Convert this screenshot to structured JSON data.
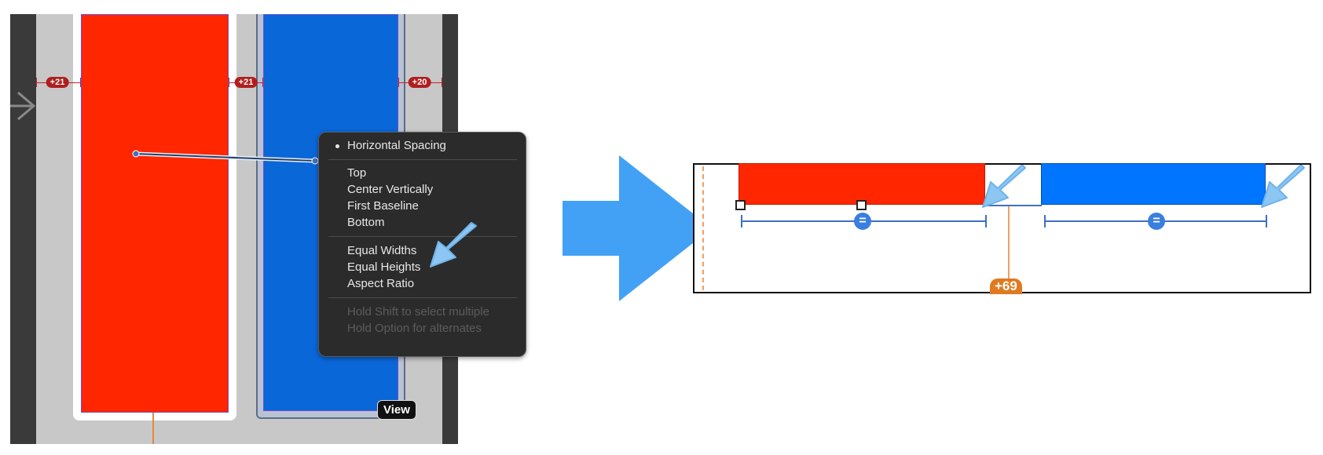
{
  "canvas": {
    "constraint_badges": [
      "+21",
      "+21",
      "+20"
    ]
  },
  "context_menu": {
    "selected_item": "Horizontal Spacing",
    "group_alignment": [
      "Top",
      "Center Vertically",
      "First Baseline",
      "Bottom"
    ],
    "group_sizing": [
      "Equal Widths",
      "Equal Heights",
      "Aspect Ratio"
    ],
    "hints": [
      "Hold Shift to select multiple",
      "Hold Option for alternates"
    ]
  },
  "view_label": "View",
  "preview": {
    "equal_symbol": "=",
    "offset_badge": "+69"
  },
  "colors": {
    "red_view": "#ff2600",
    "blue_view_canvas": "#0a67d8",
    "blue_view_preview": "#0075ff",
    "arrow": "#42a1f5",
    "constraint_red": "#b01e1e",
    "constraint_blue": "#3f6fc4",
    "orange_guide": "#e07a20"
  },
  "icons": [
    "chevron-right-icon",
    "big-right-arrow-icon",
    "annotation-arrow-icon",
    "equal-constraint-icon"
  ]
}
